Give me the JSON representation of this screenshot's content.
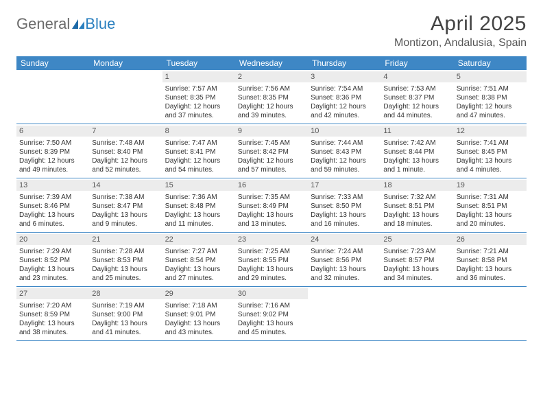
{
  "logo": {
    "text1": "General",
    "text2": "Blue"
  },
  "header": {
    "title": "April 2025",
    "location": "Montizon, Andalusia, Spain"
  },
  "colors": {
    "header_bg": "#3e87c5",
    "header_text": "#ffffff",
    "daynum_bg": "#ececec",
    "border": "#3e87c5",
    "logo_gray": "#6b6b6b",
    "logo_blue": "#2a7fbf"
  },
  "fonts": {
    "title_size": 30,
    "location_size": 16,
    "dayhead_size": 12,
    "body_size": 10
  },
  "dayHeaders": [
    "Sunday",
    "Monday",
    "Tuesday",
    "Wednesday",
    "Thursday",
    "Friday",
    "Saturday"
  ],
  "weeks": [
    [
      null,
      null,
      {
        "n": "1",
        "sr": "7:57 AM",
        "ss": "8:35 PM",
        "dl": "12 hours and 37 minutes."
      },
      {
        "n": "2",
        "sr": "7:56 AM",
        "ss": "8:35 PM",
        "dl": "12 hours and 39 minutes."
      },
      {
        "n": "3",
        "sr": "7:54 AM",
        "ss": "8:36 PM",
        "dl": "12 hours and 42 minutes."
      },
      {
        "n": "4",
        "sr": "7:53 AM",
        "ss": "8:37 PM",
        "dl": "12 hours and 44 minutes."
      },
      {
        "n": "5",
        "sr": "7:51 AM",
        "ss": "8:38 PM",
        "dl": "12 hours and 47 minutes."
      }
    ],
    [
      {
        "n": "6",
        "sr": "7:50 AM",
        "ss": "8:39 PM",
        "dl": "12 hours and 49 minutes."
      },
      {
        "n": "7",
        "sr": "7:48 AM",
        "ss": "8:40 PM",
        "dl": "12 hours and 52 minutes."
      },
      {
        "n": "8",
        "sr": "7:47 AM",
        "ss": "8:41 PM",
        "dl": "12 hours and 54 minutes."
      },
      {
        "n": "9",
        "sr": "7:45 AM",
        "ss": "8:42 PM",
        "dl": "12 hours and 57 minutes."
      },
      {
        "n": "10",
        "sr": "7:44 AM",
        "ss": "8:43 PM",
        "dl": "12 hours and 59 minutes."
      },
      {
        "n": "11",
        "sr": "7:42 AM",
        "ss": "8:44 PM",
        "dl": "13 hours and 1 minute."
      },
      {
        "n": "12",
        "sr": "7:41 AM",
        "ss": "8:45 PM",
        "dl": "13 hours and 4 minutes."
      }
    ],
    [
      {
        "n": "13",
        "sr": "7:39 AM",
        "ss": "8:46 PM",
        "dl": "13 hours and 6 minutes."
      },
      {
        "n": "14",
        "sr": "7:38 AM",
        "ss": "8:47 PM",
        "dl": "13 hours and 9 minutes."
      },
      {
        "n": "15",
        "sr": "7:36 AM",
        "ss": "8:48 PM",
        "dl": "13 hours and 11 minutes."
      },
      {
        "n": "16",
        "sr": "7:35 AM",
        "ss": "8:49 PM",
        "dl": "13 hours and 13 minutes."
      },
      {
        "n": "17",
        "sr": "7:33 AM",
        "ss": "8:50 PM",
        "dl": "13 hours and 16 minutes."
      },
      {
        "n": "18",
        "sr": "7:32 AM",
        "ss": "8:51 PM",
        "dl": "13 hours and 18 minutes."
      },
      {
        "n": "19",
        "sr": "7:31 AM",
        "ss": "8:51 PM",
        "dl": "13 hours and 20 minutes."
      }
    ],
    [
      {
        "n": "20",
        "sr": "7:29 AM",
        "ss": "8:52 PM",
        "dl": "13 hours and 23 minutes."
      },
      {
        "n": "21",
        "sr": "7:28 AM",
        "ss": "8:53 PM",
        "dl": "13 hours and 25 minutes."
      },
      {
        "n": "22",
        "sr": "7:27 AM",
        "ss": "8:54 PM",
        "dl": "13 hours and 27 minutes."
      },
      {
        "n": "23",
        "sr": "7:25 AM",
        "ss": "8:55 PM",
        "dl": "13 hours and 29 minutes."
      },
      {
        "n": "24",
        "sr": "7:24 AM",
        "ss": "8:56 PM",
        "dl": "13 hours and 32 minutes."
      },
      {
        "n": "25",
        "sr": "7:23 AM",
        "ss": "8:57 PM",
        "dl": "13 hours and 34 minutes."
      },
      {
        "n": "26",
        "sr": "7:21 AM",
        "ss": "8:58 PM",
        "dl": "13 hours and 36 minutes."
      }
    ],
    [
      {
        "n": "27",
        "sr": "7:20 AM",
        "ss": "8:59 PM",
        "dl": "13 hours and 38 minutes."
      },
      {
        "n": "28",
        "sr": "7:19 AM",
        "ss": "9:00 PM",
        "dl": "13 hours and 41 minutes."
      },
      {
        "n": "29",
        "sr": "7:18 AM",
        "ss": "9:01 PM",
        "dl": "13 hours and 43 minutes."
      },
      {
        "n": "30",
        "sr": "7:16 AM",
        "ss": "9:02 PM",
        "dl": "13 hours and 45 minutes."
      },
      null,
      null,
      null
    ]
  ],
  "labels": {
    "sunrise": "Sunrise: ",
    "sunset": "Sunset: ",
    "daylight": "Daylight: "
  }
}
